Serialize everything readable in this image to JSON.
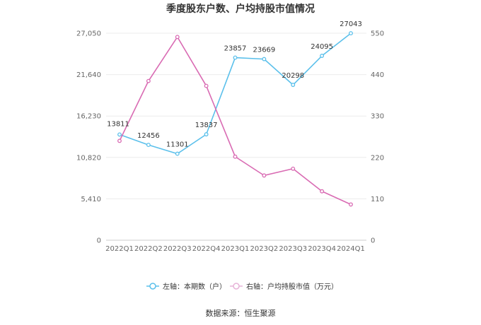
{
  "chart_data": {
    "type": "line",
    "title": "季度股东户数、户均持股市值情况",
    "categories": [
      "2022Q1",
      "2022Q2",
      "2022Q3",
      "2022Q4",
      "2023Q1",
      "2023Q2",
      "2023Q3",
      "2023Q4",
      "2024Q1"
    ],
    "left_axis": {
      "ticks": [
        "0",
        "5,410",
        "10,820",
        "16,230",
        "21,640",
        "27,050"
      ],
      "range": [
        0,
        27050
      ]
    },
    "right_axis": {
      "ticks": [
        "0",
        "110",
        "220",
        "330",
        "440",
        "550"
      ],
      "range": [
        0,
        550
      ]
    },
    "series": [
      {
        "name": "左轴：本期数（户）",
        "axis": "left",
        "color": "#5bc0eb",
        "values": [
          13811,
          12456,
          11301,
          13837,
          23857,
          23669,
          20298,
          24095,
          27043
        ],
        "labels": [
          "13811",
          "12456",
          "11301",
          "13837",
          "23857",
          "23669",
          "20298",
          "24095",
          "27043"
        ]
      },
      {
        "name": "右轴：户均持股市值（万元）",
        "axis": "right",
        "color": "#d96bb3",
        "values": [
          264,
          423,
          540,
          410,
          222,
          172,
          190,
          130,
          95
        ]
      }
    ],
    "grid": true,
    "legend_position": "bottom"
  },
  "source": "数据来源：恒生聚源"
}
